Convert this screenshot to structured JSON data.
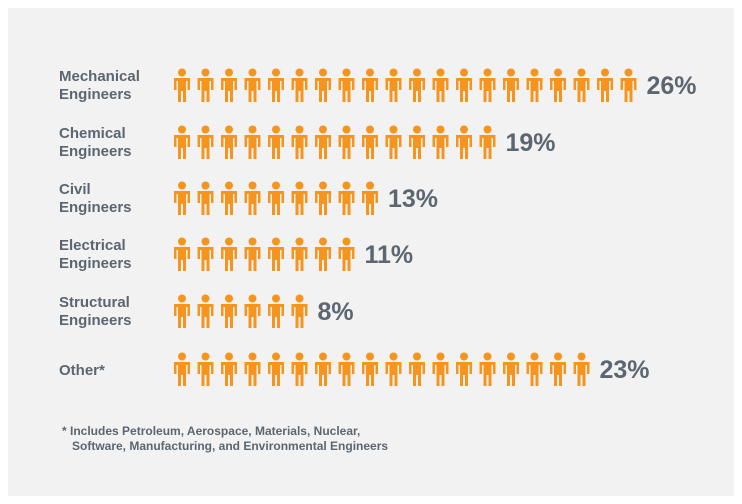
{
  "chart_data": {
    "type": "pictograph",
    "categories": [
      "Mechanical\nEngineers",
      "Chemical\nEngineers",
      "Civil\nEngineers",
      "Electrical\nEngineers",
      "Structural\nEngineers",
      "Other*"
    ],
    "values": [
      26,
      19,
      13,
      11,
      8,
      23
    ],
    "value_labels": [
      "26%",
      "19%",
      "13%",
      "11%",
      "8%",
      "23%"
    ],
    "icon_counts": [
      20,
      14,
      9,
      8,
      6,
      18
    ],
    "icon": "person-icon",
    "icon_color": "#f7941d",
    "text_color": "#5b6670",
    "background_color": "#f2f2f2",
    "footnote": "* Includes Petroleum, Aerospace, Materials, Nuclear,\n   Software, Manufacturing, and Environmental Engineers"
  }
}
